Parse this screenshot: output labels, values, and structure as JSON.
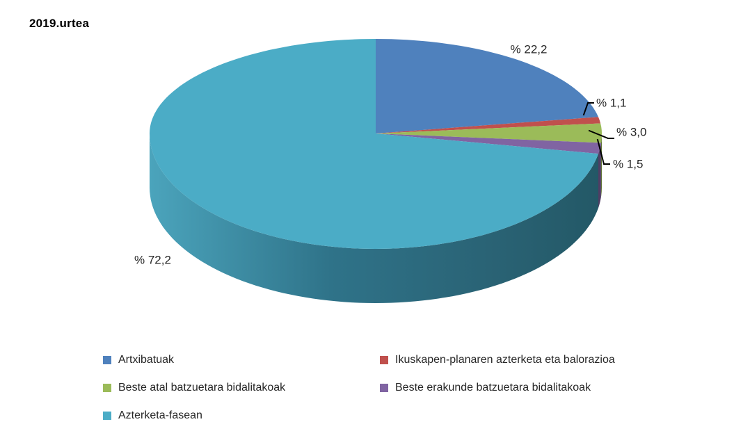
{
  "chart_data": {
    "type": "pie",
    "title": "2019.urtea",
    "style": "3d",
    "start_angle_deg": 0,
    "direction": "clockwise",
    "legend_position": "bottom",
    "categories": [
      "Artxibatuak",
      "Ikuskapen-planaren azterketa eta balorazioa",
      "Beste atal batzuetara bidalitakoak",
      "Beste erakunde batzuetara bidalitakoak",
      "Azterketa-fasean"
    ],
    "values": [
      22.2,
      1.1,
      3.0,
      1.5,
      72.2
    ],
    "data_labels": [
      "% 22,2",
      "% 1,1",
      "% 3,0",
      "% 1,5",
      "% 72,2"
    ],
    "colors": [
      "#4F81BD",
      "#C0504D",
      "#9BBB59",
      "#8064A2",
      "#4BACC6"
    ]
  }
}
